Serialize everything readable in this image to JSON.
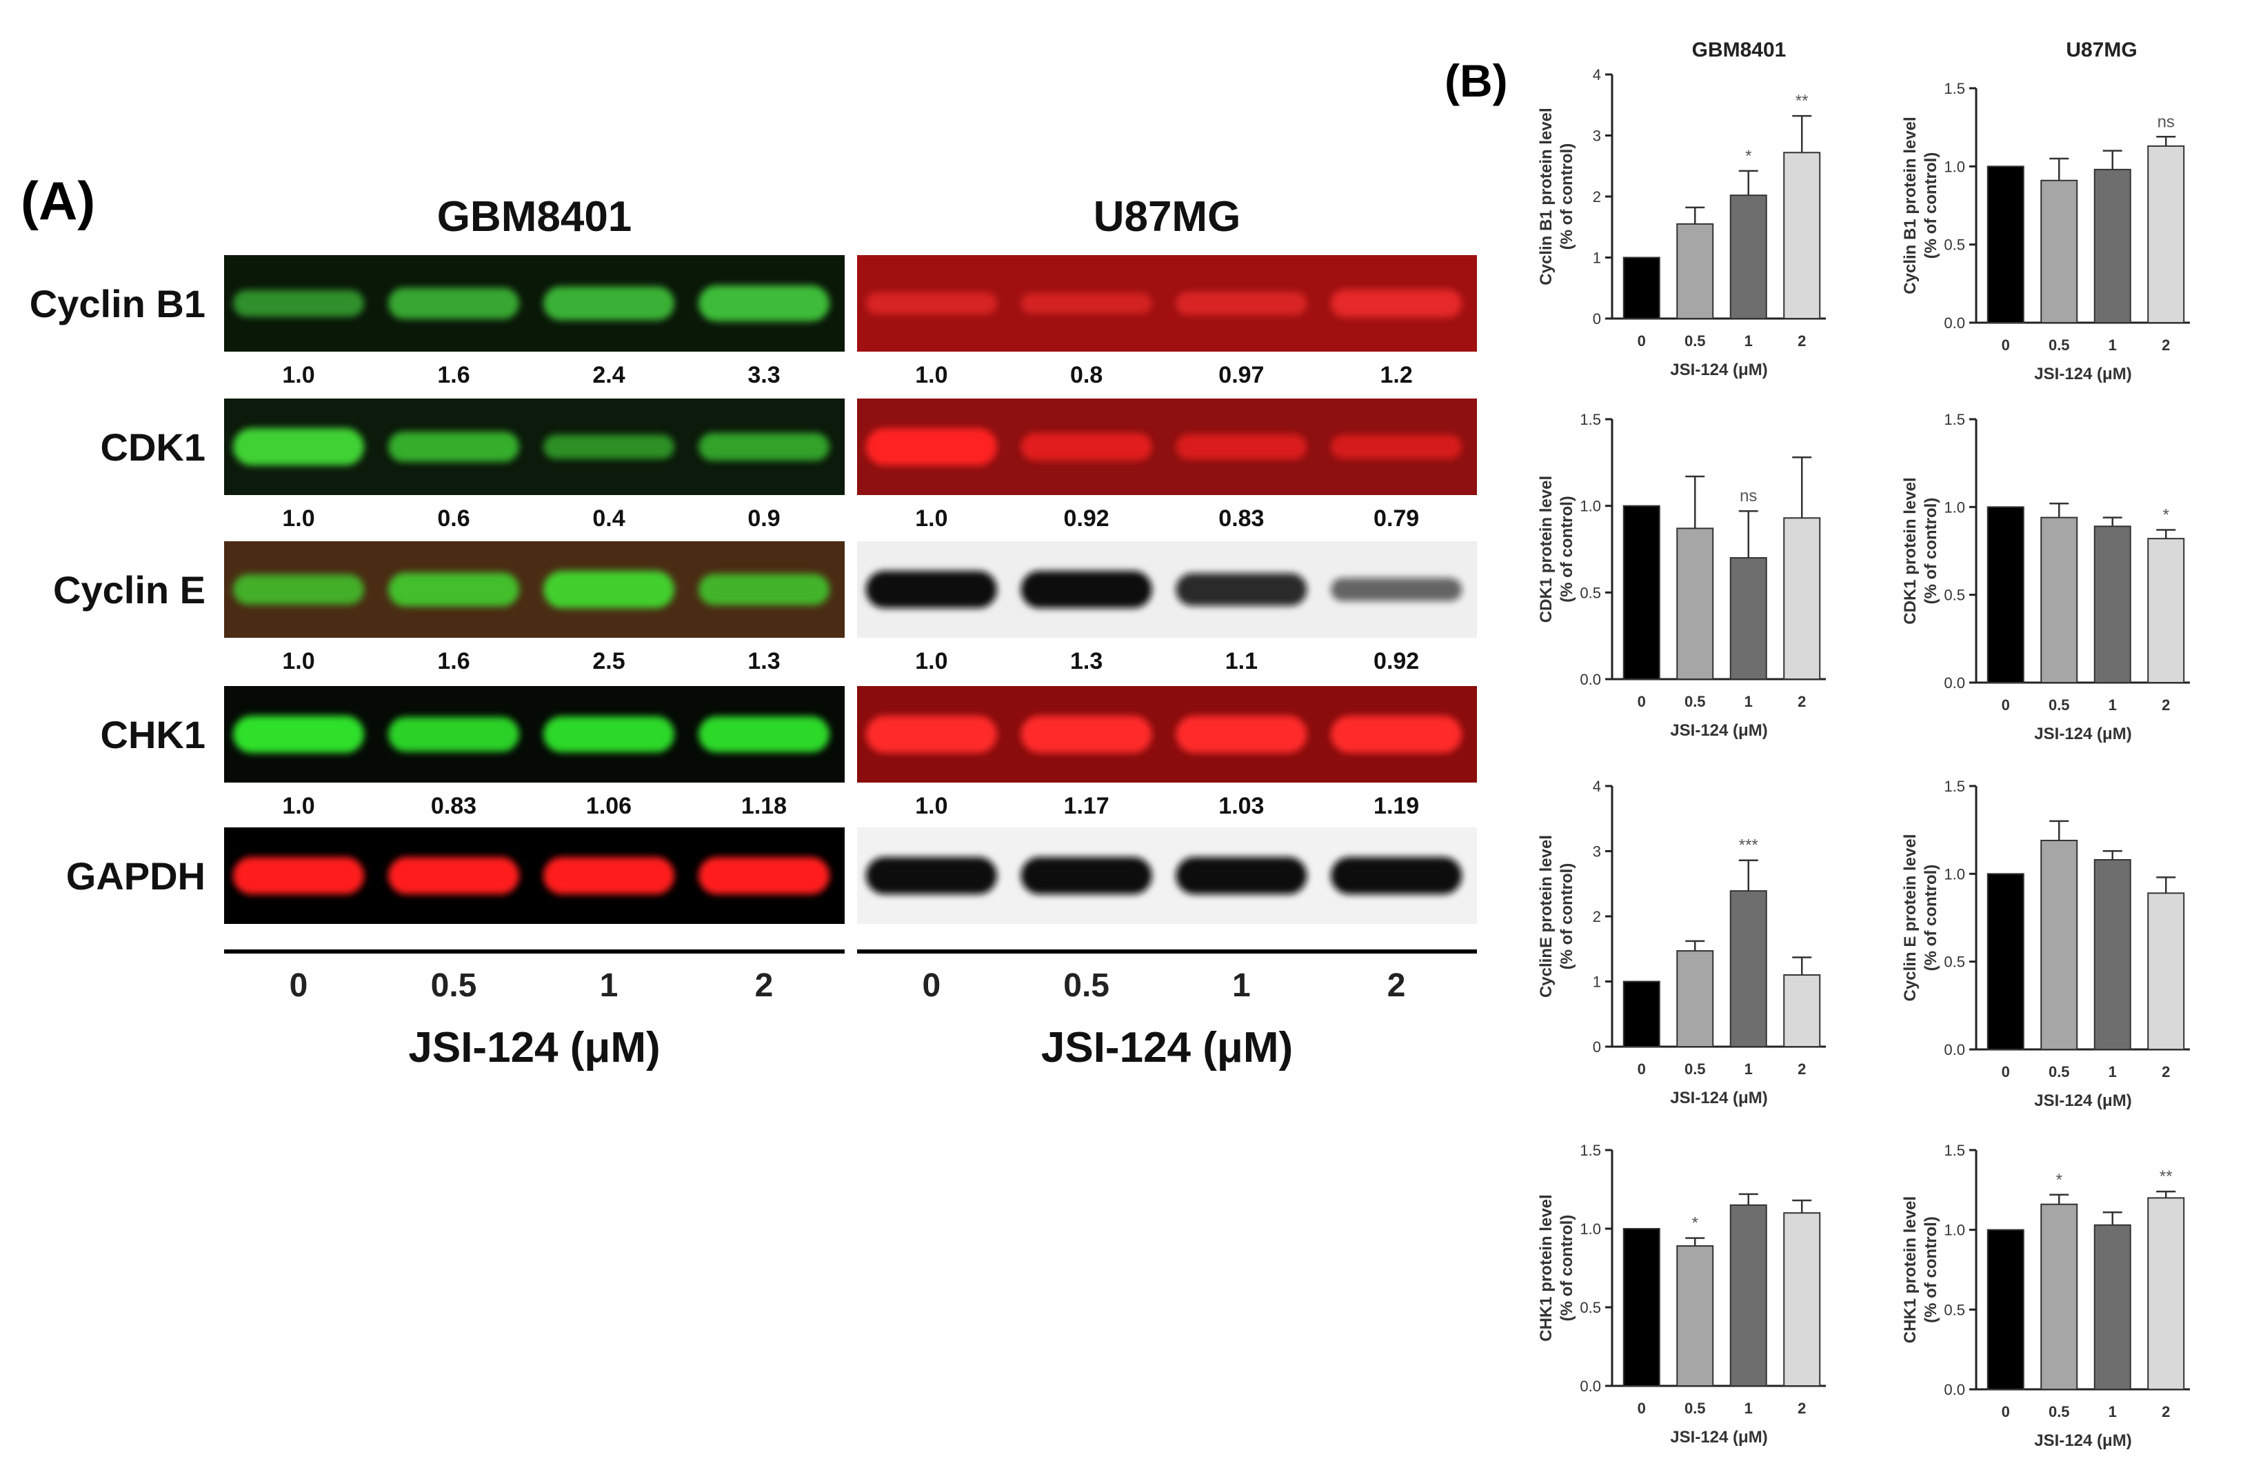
{
  "panel_a": {
    "label": "(A)",
    "groups": [
      {
        "name": "GBM8401",
        "dye": "green",
        "rows": [
          {
            "protein": "Cyclin B1",
            "bg": "#0a1808",
            "band": "#41c23a",
            "intensity": [
              0.55,
              0.75,
              0.85,
              0.95
            ],
            "values": [
              "1.0",
              "1.6",
              "2.4",
              "3.3"
            ]
          },
          {
            "protein": "CDK1",
            "bg": "#0b1a0a",
            "band": "#3fd236",
            "intensity": [
              1.0,
              0.7,
              0.45,
              0.6
            ],
            "values": [
              "1.0",
              "0.6",
              "0.4",
              "0.9"
            ]
          },
          {
            "protein": "Cyclin E",
            "bg": "#4a2c14",
            "band": "#43cf2e",
            "intensity": [
              0.7,
              0.85,
              1.0,
              0.75
            ],
            "values": [
              "1.0",
              "1.6",
              "2.5",
              "1.3"
            ]
          },
          {
            "protein": "CHK1",
            "bg": "#050a05",
            "band": "#2fe02b",
            "intensity": [
              1.0,
              0.9,
              0.95,
              0.95
            ],
            "values": [
              "1.0",
              "0.83",
              "1.06",
              "1.18"
            ]
          },
          {
            "protein": "GAPDH",
            "bg": "#000000",
            "band": "#ff1a1a",
            "intensity": [
              1.0,
              1.0,
              1.0,
              1.0
            ],
            "values": []
          }
        ]
      },
      {
        "name": "U87MG",
        "dye": "mixed",
        "rows": [
          {
            "protein": "Cyclin B1",
            "bg": "#a01010",
            "band": "#ff3030",
            "intensity": [
              0.35,
              0.3,
              0.4,
              0.6
            ],
            "values": [
              "1.0",
              "0.8",
              "0.97",
              "1.2"
            ]
          },
          {
            "protein": "CDK1",
            "bg": "#8e1010",
            "band": "#ff2020",
            "intensity": [
              1.0,
              0.6,
              0.5,
              0.45
            ],
            "values": [
              "1.0",
              "0.92",
              "0.83",
              "0.79"
            ]
          },
          {
            "protein": "Cyclin E",
            "bg": "#efefef",
            "band": "#0c0c0c",
            "intensity": [
              1.0,
              1.0,
              0.8,
              0.4
            ],
            "values": [
              "1.0",
              "1.3",
              "1.1",
              "0.92"
            ]
          },
          {
            "protein": "CHK1",
            "bg": "#8a0c0c",
            "band": "#ff2a2a",
            "intensity": [
              1.0,
              1.0,
              1.0,
              1.0
            ],
            "values": [
              "1.0",
              "1.17",
              "1.03",
              "1.19"
            ]
          },
          {
            "protein": "GAPDH",
            "bg": "#f2f2f2",
            "band": "#0e0e0e",
            "intensity": [
              1.0,
              1.0,
              1.0,
              1.0
            ],
            "values": []
          }
        ]
      }
    ],
    "doses": [
      "0",
      "0.5",
      "1",
      "2"
    ],
    "xlabel": "JSI-124 (μM)"
  },
  "panel_b": {
    "label": "(B)",
    "column_titles": [
      "GBM8401",
      "U87MG"
    ],
    "bar_colors": [
      "#000000",
      "#a6a6a6",
      "#6e6e6e",
      "#d9d9d9"
    ]
  },
  "chart_data": [
    {
      "type": "bar",
      "cell_line": "GBM8401",
      "categories": [
        "0",
        "0.5",
        "1",
        "2"
      ],
      "values": [
        1.0,
        1.55,
        2.02,
        2.72
      ],
      "errors": [
        0,
        0.27,
        0.4,
        0.6
      ],
      "annotations": [
        "",
        "",
        "*",
        "**"
      ],
      "xlabel": "JSI-124 (μM)",
      "ylabel": [
        "Cyclin B1 protein level",
        "(% of control)"
      ],
      "ylim": [
        0,
        4
      ],
      "yticks": [
        "0",
        "1",
        "2",
        "3",
        "4"
      ]
    },
    {
      "type": "bar",
      "cell_line": "U87MG",
      "categories": [
        "0",
        "0.5",
        "1",
        "2"
      ],
      "values": [
        1.0,
        0.91,
        0.98,
        1.13
      ],
      "errors": [
        0,
        0.14,
        0.12,
        0.06
      ],
      "annotations": [
        "",
        "",
        "",
        "ns"
      ],
      "xlabel": "JSI-124 (μM)",
      "ylabel": [
        "Cyclin B1 protein level",
        "(% of control)"
      ],
      "ylim": [
        0,
        1.5
      ],
      "yticks": [
        "0.0",
        "0.5",
        "1.0",
        "1.5"
      ]
    },
    {
      "type": "bar",
      "cell_line": "GBM8401",
      "categories": [
        "0",
        "0.5",
        "1",
        "2"
      ],
      "values": [
        1.0,
        0.87,
        0.7,
        0.93
      ],
      "errors": [
        0,
        0.3,
        0.27,
        0.35
      ],
      "annotations": [
        "",
        "",
        "ns",
        ""
      ],
      "xlabel": "JSI-124 (μM)",
      "ylabel": [
        "CDK1 protein level",
        "(% of control)"
      ],
      "ylim": [
        0,
        1.5
      ],
      "yticks": [
        "0.0",
        "0.5",
        "1.0",
        "1.5"
      ]
    },
    {
      "type": "bar",
      "cell_line": "U87MG",
      "categories": [
        "0",
        "0.5",
        "1",
        "2"
      ],
      "values": [
        1.0,
        0.94,
        0.89,
        0.82
      ],
      "errors": [
        0,
        0.08,
        0.05,
        0.05
      ],
      "annotations": [
        "",
        "",
        "",
        "*"
      ],
      "xlabel": "JSI-124 (μM)",
      "ylabel": [
        "CDK1 protein level",
        "(% of control)"
      ],
      "ylim": [
        0,
        1.5
      ],
      "yticks": [
        "0.0",
        "0.5",
        "1.0",
        "1.5"
      ]
    },
    {
      "type": "bar",
      "cell_line": "GBM8401",
      "categories": [
        "0",
        "0.5",
        "1",
        "2"
      ],
      "values": [
        1.0,
        1.47,
        2.39,
        1.1
      ],
      "errors": [
        0,
        0.15,
        0.47,
        0.27
      ],
      "annotations": [
        "",
        "",
        "***",
        ""
      ],
      "xlabel": "JSI-124 (μM)",
      "ylabel": [
        "CyclinE protein level",
        "(% of control)"
      ],
      "ylim": [
        0,
        4
      ],
      "yticks": [
        "0",
        "1",
        "2",
        "3",
        "4"
      ]
    },
    {
      "type": "bar",
      "cell_line": "U87MG",
      "categories": [
        "0",
        "0.5",
        "1",
        "2"
      ],
      "values": [
        1.0,
        1.19,
        1.08,
        0.89
      ],
      "errors": [
        0,
        0.11,
        0.05,
        0.09
      ],
      "annotations": [
        "",
        "",
        "",
        ""
      ],
      "xlabel": "JSI-124 (μM)",
      "ylabel": [
        "Cyclin E protein level",
        "(% of control)"
      ],
      "ylim": [
        0,
        1.5
      ],
      "yticks": [
        "0.0",
        "0.5",
        "1.0",
        "1.5"
      ]
    },
    {
      "type": "bar",
      "cell_line": "GBM8401",
      "categories": [
        "0",
        "0.5",
        "1",
        "2"
      ],
      "values": [
        1.0,
        0.89,
        1.15,
        1.1
      ],
      "errors": [
        0,
        0.05,
        0.07,
        0.08
      ],
      "annotations": [
        "",
        "*",
        "",
        ""
      ],
      "xlabel": "JSI-124 (μM)",
      "ylabel": [
        "CHK1 protein level",
        "(% of control)"
      ],
      "ylim": [
        0,
        1.5
      ],
      "yticks": [
        "0.0",
        "0.5",
        "1.0",
        "1.5"
      ]
    },
    {
      "type": "bar",
      "cell_line": "U87MG",
      "categories": [
        "0",
        "0.5",
        "1",
        "2"
      ],
      "values": [
        1.0,
        1.16,
        1.03,
        1.2
      ],
      "errors": [
        0,
        0.06,
        0.08,
        0.04
      ],
      "annotations": [
        "",
        "*",
        "",
        "**"
      ],
      "xlabel": "JSI-124 (μM)",
      "ylabel": [
        "CHK1 protein level",
        "(% of control)"
      ],
      "ylim": [
        0,
        1.5
      ],
      "yticks": [
        "0.0",
        "0.5",
        "1.0",
        "1.5"
      ]
    }
  ]
}
